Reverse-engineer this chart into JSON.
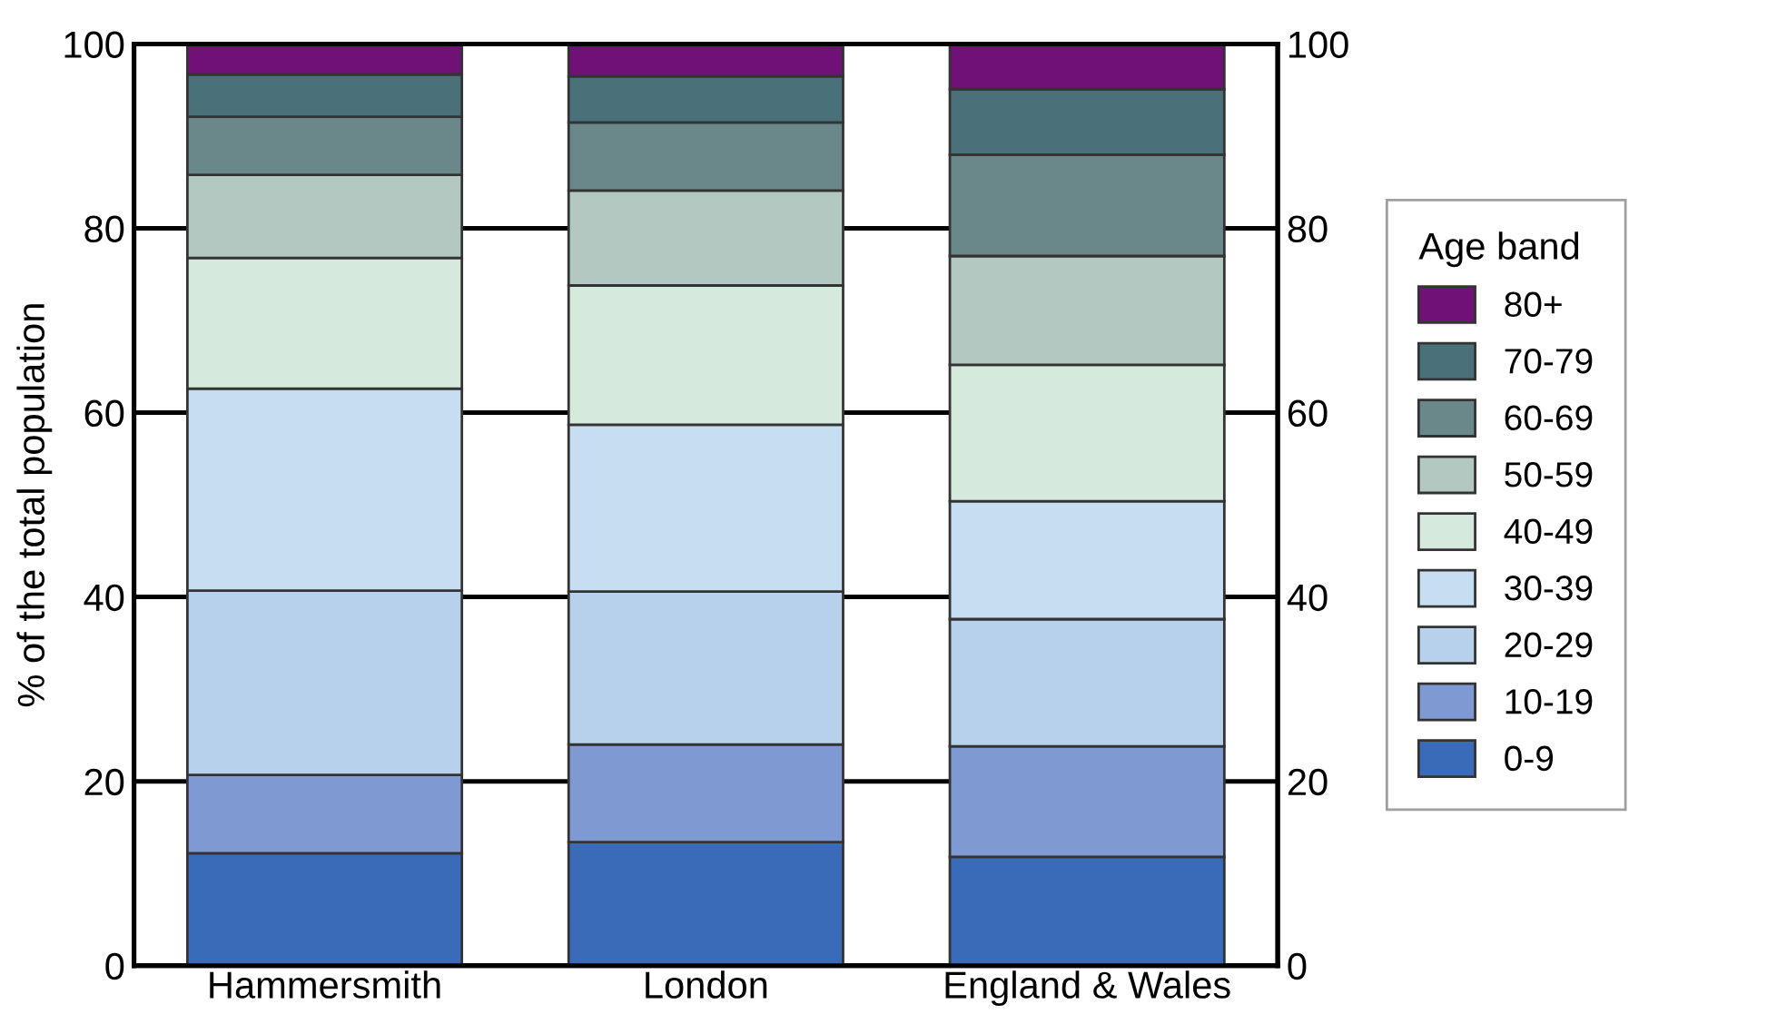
{
  "chart_data": {
    "type": "bar",
    "stacked": true,
    "ylabel": "% of the total population",
    "legend_title": "Age band",
    "legend": "right",
    "grid": "y",
    "categories": [
      "Hammersmith",
      "London",
      "England & Wales"
    ],
    "ylim": [
      0,
      100
    ],
    "yticks": [
      0,
      20,
      40,
      60,
      80,
      100
    ],
    "y2lim": [
      0,
      100
    ],
    "y2ticks": [
      0,
      20,
      40,
      60,
      80,
      100
    ],
    "series": [
      {
        "name": "0-9",
        "color": "#3a6bb8",
        "values": [
          12.2,
          13.4,
          11.8
        ]
      },
      {
        "name": "10-19",
        "color": "#7f9ad3",
        "values": [
          8.5,
          10.6,
          12.0
        ]
      },
      {
        "name": "20-29",
        "color": "#b7d0ec",
        "values": [
          20.0,
          16.6,
          13.8
        ]
      },
      {
        "name": "30-39",
        "color": "#c6ddf2",
        "values": [
          21.9,
          18.1,
          12.8
        ]
      },
      {
        "name": "40-49",
        "color": "#d5e9dc",
        "values": [
          14.2,
          15.1,
          14.8
        ]
      },
      {
        "name": "50-59",
        "color": "#b3c8c1",
        "values": [
          9.0,
          10.3,
          11.8
        ]
      },
      {
        "name": "60-69",
        "color": "#6a8889",
        "values": [
          6.3,
          7.4,
          11.0
        ]
      },
      {
        "name": "70-79",
        "color": "#4a717a",
        "values": [
          4.6,
          5.0,
          7.1
        ]
      },
      {
        "name": "80+",
        "color": "#6f1176",
        "values": [
          3.3,
          3.5,
          4.9
        ]
      }
    ]
  }
}
